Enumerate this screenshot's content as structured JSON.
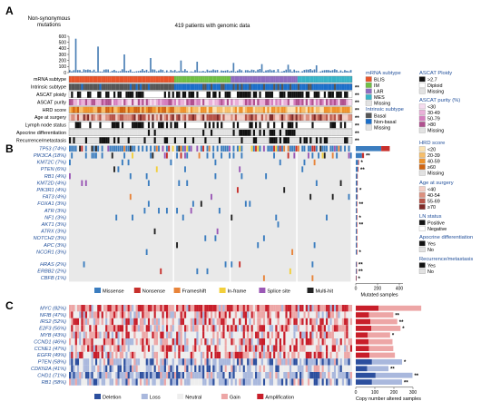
{
  "panels": {
    "a": "A",
    "b": "B",
    "c": "C"
  },
  "header": {
    "mutations_label_1": "Non-synonymous",
    "mutations_label_2": "mutations",
    "patients_label": "419 patients with genomic data"
  },
  "chart_data": [
    {
      "type": "bar",
      "title": "",
      "ylabel": "Non-synonymous mutations",
      "ylim": [
        0,
        600
      ],
      "yticks": [
        0,
        100,
        200,
        300,
        400,
        500,
        600
      ],
      "n_samples": 419,
      "typical_range": [
        5,
        60
      ],
      "outlier_values": [
        560,
        430,
        300,
        240,
        200,
        180,
        160,
        140,
        130,
        120
      ]
    },
    {
      "type": "heatmap",
      "name": "clinical-annotation-tracks",
      "rows": [
        {
          "label": "mRNA subtype",
          "sig": ""
        },
        {
          "label": "Intrinsic subtype",
          "sig": "**"
        },
        {
          "label": "ASCAT ploidy",
          "sig": "**"
        },
        {
          "label": "ASCAT purity",
          "sig": "**"
        },
        {
          "label": "HRD score",
          "sig": "**"
        },
        {
          "label": "Age at surgery",
          "sig": "**"
        },
        {
          "label": "Lymph node status",
          "sig": "**"
        },
        {
          "label": "Apocrine differentiation",
          "sig": "**"
        },
        {
          "label": "Recurrence/metastasis",
          "sig": "**"
        }
      ],
      "subtype_groups": [
        {
          "name": "BLIS",
          "fraction": 0.37,
          "color": "#e8542a"
        },
        {
          "name": "IM",
          "fraction": 0.2,
          "color": "#6fbf44"
        },
        {
          "name": "LAR",
          "fraction": 0.24,
          "color": "#8e6cc0"
        },
        {
          "name": "MES",
          "fraction": 0.19,
          "color": "#37b4c8"
        }
      ]
    },
    {
      "type": "heatmap",
      "name": "mutation-oncoprint",
      "genes": [
        {
          "label": "TP53 (74%)",
          "freq": 0.74,
          "sig": ""
        },
        {
          "label": "PIK3CA (18%)",
          "freq": 0.18,
          "sig": "**"
        },
        {
          "label": "KMT2C (7%)",
          "freq": 0.07,
          "sig": "*"
        },
        {
          "label": "PTEN (6%)",
          "freq": 0.06,
          "sig": "**"
        },
        {
          "label": "RB1 (4%)",
          "freq": 0.04,
          "sig": ""
        },
        {
          "label": "KMT2D (4%)",
          "freq": 0.04,
          "sig": ""
        },
        {
          "label": "PIK3R1 (4%)",
          "freq": 0.04,
          "sig": "*"
        },
        {
          "label": "FAT3 (4%)",
          "freq": 0.04,
          "sig": ""
        },
        {
          "label": "FOXA1 (3%)",
          "freq": 0.03,
          "sig": "**"
        },
        {
          "label": "ATR (3%)",
          "freq": 0.03,
          "sig": ""
        },
        {
          "label": "NF1 (3%)",
          "freq": 0.03,
          "sig": "*"
        },
        {
          "label": "AKT1 (3%)",
          "freq": 0.03,
          "sig": "**"
        },
        {
          "label": "ATRX (3%)",
          "freq": 0.03,
          "sig": ""
        },
        {
          "label": "NOTCH2 (3%)",
          "freq": 0.03,
          "sig": ""
        },
        {
          "label": "APC (3%)",
          "freq": 0.03,
          "sig": ""
        },
        {
          "label": "NCOR1 (3%)",
          "freq": 0.03,
          "sig": "*"
        },
        {
          "label": "HRAS (2%)",
          "freq": 0.02,
          "sig": "**"
        },
        {
          "label": "ERBB2 (2%)",
          "freq": 0.02,
          "sig": "**"
        },
        {
          "label": "CBFB (1%)",
          "freq": 0.01,
          "sig": "*"
        }
      ],
      "mutation_types": [
        {
          "name": "Missense",
          "color": "#3b7dbf"
        },
        {
          "name": "Nonsense",
          "color": "#c7302c"
        },
        {
          "name": "Frameshift",
          "color": "#e8843a"
        },
        {
          "name": "In-frame",
          "color": "#f2cf3c"
        },
        {
          "name": "Splice site",
          "color": "#9b59b6"
        },
        {
          "name": "Multi-hit",
          "color": "#222222"
        }
      ],
      "xlabel": "Mutated samples",
      "xticks": [
        0,
        200,
        400
      ]
    },
    {
      "type": "heatmap",
      "name": "copy-number-heatmap",
      "genes": [
        {
          "label": "MYC (82%)",
          "gain": 0.82,
          "sig": ""
        },
        {
          "label": "NFIB (47%)",
          "gain": 0.47,
          "sig": "**"
        },
        {
          "label": "IRS2 (52%)",
          "gain": 0.52,
          "sig": "**"
        },
        {
          "label": "E2F3 (56%)",
          "gain": 0.56,
          "sig": "*"
        },
        {
          "label": "MYB (43%)",
          "gain": 0.43,
          "sig": "*"
        },
        {
          "label": "CCND1 (46%)",
          "gain": 0.46,
          "sig": ""
        },
        {
          "label": "CCNE1 (47%)",
          "gain": 0.47,
          "sig": ""
        },
        {
          "label": "EGFR (49%)",
          "gain": 0.49,
          "sig": ""
        },
        {
          "label": "PTEN (58%)",
          "loss": 0.58,
          "sig": "*"
        },
        {
          "label": "CDKN2A (41%)",
          "loss": 0.41,
          "sig": "**"
        },
        {
          "label": "CHD1 (71%)",
          "loss": 0.71,
          "sig": "**"
        },
        {
          "label": "RB1 (58%)",
          "loss": 0.58,
          "sig": "**"
        }
      ],
      "cn_types": [
        {
          "name": "Deletion",
          "color": "#2c4f9e"
        },
        {
          "name": "Loss",
          "color": "#a9b8dd"
        },
        {
          "name": "Neutral",
          "color": "#eeeeee"
        },
        {
          "name": "Gain",
          "color": "#eda6a6"
        },
        {
          "name": "Amplification",
          "color": "#c81e2a"
        }
      ],
      "xlabel": "Copy number altered samples",
      "xticks": [
        0,
        100,
        200,
        300
      ]
    }
  ],
  "legends": {
    "mrna": {
      "title": "mRNA subtype",
      "items": [
        {
          "name": "BLIS",
          "color": "#e8542a"
        },
        {
          "name": "IM",
          "color": "#6fbf44"
        },
        {
          "name": "LAR",
          "color": "#8e6cc0"
        },
        {
          "name": "MES",
          "color": "#37b4c8"
        },
        {
          "name": "Missing",
          "color": "#e2e2e2"
        }
      ]
    },
    "intrinsic": {
      "title": "Intrinsic subtype",
      "items": [
        {
          "name": "Basal",
          "color": "#555555"
        },
        {
          "name": "Non-basal",
          "color": "#1b6ec9"
        },
        {
          "name": "Missing",
          "color": "#e2e2e2"
        }
      ]
    },
    "ploidy": {
      "title": "ASCAT Ploidy",
      "items": [
        {
          "name": ">2.7",
          "color": "#111111"
        },
        {
          "name": "Diploid",
          "color": "#ffffff"
        },
        {
          "name": "Missing",
          "color": "#e2e2e2"
        }
      ]
    },
    "purity": {
      "title": "ASCAT purity (%)",
      "items": [
        {
          "name": "<30",
          "color": "#f6dcef"
        },
        {
          "name": "30-49",
          "color": "#eab0d9"
        },
        {
          "name": "50-79",
          "color": "#d57fbf"
        },
        {
          "name": ">80",
          "color": "#b0508f"
        },
        {
          "name": "Missing",
          "color": "#e2e2e2"
        }
      ]
    },
    "hrd": {
      "title": "HRD score",
      "items": [
        {
          "name": "<20",
          "color": "#fbe3b3"
        },
        {
          "name": "20-39",
          "color": "#f6be6a"
        },
        {
          "name": "40-59",
          "color": "#ee932c"
        },
        {
          "name": "≥60",
          "color": "#cf6411"
        },
        {
          "name": "Missing",
          "color": "#e2e2e2"
        }
      ]
    },
    "age": {
      "title": "Age at surgery",
      "items": [
        {
          "name": "<40",
          "color": "#f3cfc6"
        },
        {
          "name": "40-54",
          "color": "#dc8f7e"
        },
        {
          "name": "55-69",
          "color": "#b85549"
        },
        {
          "name": "≥70",
          "color": "#7e2a28"
        }
      ]
    },
    "ln": {
      "title": "LN status",
      "items": [
        {
          "name": "Positive",
          "color": "#111111"
        },
        {
          "name": "Negative",
          "color": "#ffffff"
        }
      ]
    },
    "apocrine": {
      "title": "Apocrine differentiation",
      "items": [
        {
          "name": "Yes",
          "color": "#111111"
        },
        {
          "name": "No",
          "color": "#e2e2e2"
        }
      ]
    },
    "recurrence": {
      "title": "Recurrence/metastasis",
      "items": [
        {
          "name": "Yes",
          "color": "#111111"
        },
        {
          "name": "No",
          "color": "#e2e2e2"
        }
      ]
    }
  },
  "colors": {
    "title_blue": "#1f4e9a",
    "track_bg": "#d4d4d4",
    "bar_blue": "#4a7fb5"
  }
}
